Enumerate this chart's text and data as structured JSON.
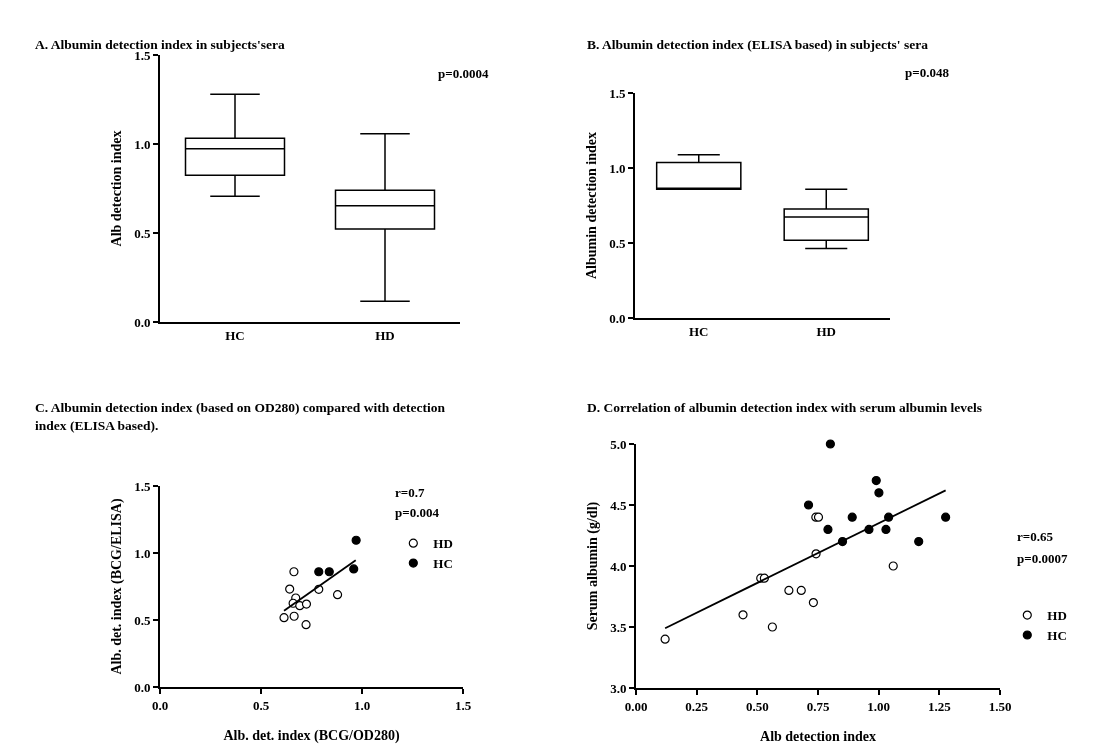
{
  "chart_data": [
    {
      "type": "box",
      "title": "A.  Albumin detection index in subjects'sera",
      "ylabel": "Alb detection index",
      "categories": [
        "HC",
        "HD"
      ],
      "boxes": [
        {
          "low": 0.706,
          "q1": 0.825,
          "median": 0.974,
          "q3": 1.032,
          "high": 1.279
        },
        {
          "low": 0.117,
          "q1": 0.523,
          "median": 0.653,
          "q3": 0.74,
          "high": 1.058
        }
      ],
      "ylim": [
        0,
        1.5
      ],
      "yticks": [
        {
          "value": 0,
          "label": "0.0"
        },
        {
          "value": 0.5,
          "label": "0.5"
        },
        {
          "value": 1,
          "label": "1.0"
        },
        {
          "value": 1.5,
          "label": "1.5"
        }
      ],
      "annotations": [
        "p=0.0004"
      ],
      "grid": false
    },
    {
      "type": "box",
      "title": "B.  Albumin detection index (ELISA based) in subjects' sera",
      "ylabel": "Albumin detection index",
      "categories": [
        "HC",
        "HD"
      ],
      "boxes": [
        {
          "low": 0.858,
          "q1": 0.858,
          "median": 0.862,
          "q3": 1.036,
          "high": 1.089
        },
        {
          "low": 0.464,
          "q1": 0.518,
          "median": 0.673,
          "q3": 0.727,
          "high": 0.858
        }
      ],
      "ylim": [
        0,
        1.5
      ],
      "yticks": [
        {
          "value": 0,
          "label": "0.0"
        },
        {
          "value": 0.5,
          "label": "0.5"
        },
        {
          "value": 1,
          "label": "1.0"
        },
        {
          "value": 1.5,
          "label": "1.5"
        }
      ],
      "annotations": [
        "p=0.048"
      ],
      "grid": false
    },
    {
      "type": "scatter",
      "title": "C.  Albumin detection index (based on OD280) compared with detection index (ELISA based).",
      "xlabel": "Alb. det. index (BCG/OD280)",
      "ylabel": "Alb. det. index (BCG/ELISA)",
      "series": [
        {
          "name": "HD",
          "color": "#ffffff",
          "marker": "circle",
          "x": [
            0.663,
            0.642,
            0.672,
            0.659,
            0.692,
            0.725,
            0.614,
            0.664,
            0.723,
            0.786,
            0.879
          ],
          "values": [
            0.86,
            0.731,
            0.664,
            0.625,
            0.607,
            0.619,
            0.517,
            0.528,
            0.465,
            0.729,
            0.689
          ]
        },
        {
          "name": "HC",
          "color": "#000000",
          "marker": "circle",
          "x": [
            0.786,
            0.838,
            0.959,
            0.971
          ],
          "values": [
            0.86,
            0.86,
            0.881,
            1.095
          ]
        },
        {
          "type": "line",
          "color": "#000000",
          "marker": "none",
          "x": [
            0.614,
            0.969
          ],
          "values": [
            0.569,
            0.946
          ]
        }
      ],
      "xlim": [
        0,
        1.5
      ],
      "xticks": [
        {
          "value": 0,
          "label": "0.0"
        },
        {
          "value": 0.5,
          "label": "0.5"
        },
        {
          "value": 1,
          "label": "1.0"
        },
        {
          "value": 1.5,
          "label": "1.5"
        }
      ],
      "ylim": [
        0,
        1.5
      ],
      "yticks": [
        {
          "value": 0,
          "label": "0.0"
        },
        {
          "value": 0.5,
          "label": "0.5"
        },
        {
          "value": 1,
          "label": "1.0"
        },
        {
          "value": 1.5,
          "label": "1.5"
        }
      ],
      "annotations": [
        "r=0.7",
        "p=0.004"
      ],
      "legend": "top right",
      "grid": false
    },
    {
      "type": "scatter",
      "title": "D.  Correlation of albumin detection index with serum albumin levels",
      "xlabel": "Alb detection index",
      "ylabel": "Serum albumin (g/dl)",
      "series": [
        {
          "name": "HD",
          "color": "#ffffff",
          "marker": "circle",
          "x": [
            0.12,
            0.441,
            0.562,
            0.514,
            0.529,
            0.63,
            0.681,
            0.731,
            0.741,
            0.752,
            0.742,
            1.06
          ],
          "values": [
            3.4,
            3.6,
            3.5,
            3.9,
            3.9,
            3.8,
            3.8,
            3.7,
            4.4,
            4.4,
            4.1,
            4.0
          ]
        },
        {
          "name": "HC",
          "color": "#000000",
          "marker": "circle",
          "x": [
            0.711,
            0.801,
            0.791,
            0.851,
            0.891,
            0.96,
            0.99,
            1.001,
            1.03,
            1.041,
            1.165,
            1.276
          ],
          "values": [
            4.5,
            5.0,
            4.3,
            4.2,
            4.4,
            4.3,
            4.7,
            4.6,
            4.3,
            4.4,
            4.2,
            4.4
          ]
        },
        {
          "type": "line",
          "color": "#000000",
          "marker": "none",
          "x": [
            0.12,
            1.276
          ],
          "values": [
            3.49,
            4.62
          ]
        }
      ],
      "xlim": [
        0,
        1.5
      ],
      "xticks": [
        {
          "value": 0,
          "label": "0.00"
        },
        {
          "value": 0.25,
          "label": "0.25"
        },
        {
          "value": 0.5,
          "label": "0.50"
        },
        {
          "value": 0.75,
          "label": "0.75"
        },
        {
          "value": 1,
          "label": "1.00"
        },
        {
          "value": 1.25,
          "label": "1.25"
        },
        {
          "value": 1.5,
          "label": "1.50"
        }
      ],
      "ylim": [
        3,
        5
      ],
      "yticks": [
        {
          "value": 3,
          "label": "3.0"
        },
        {
          "value": 3.5,
          "label": "3.5"
        },
        {
          "value": 4,
          "label": "4.0"
        },
        {
          "value": 4.5,
          "label": "4.5"
        },
        {
          "value": 5,
          "label": "5.0"
        }
      ],
      "annotations": [
        "r=0.65",
        "p=0.0007"
      ],
      "legend": "right",
      "grid": false
    }
  ]
}
